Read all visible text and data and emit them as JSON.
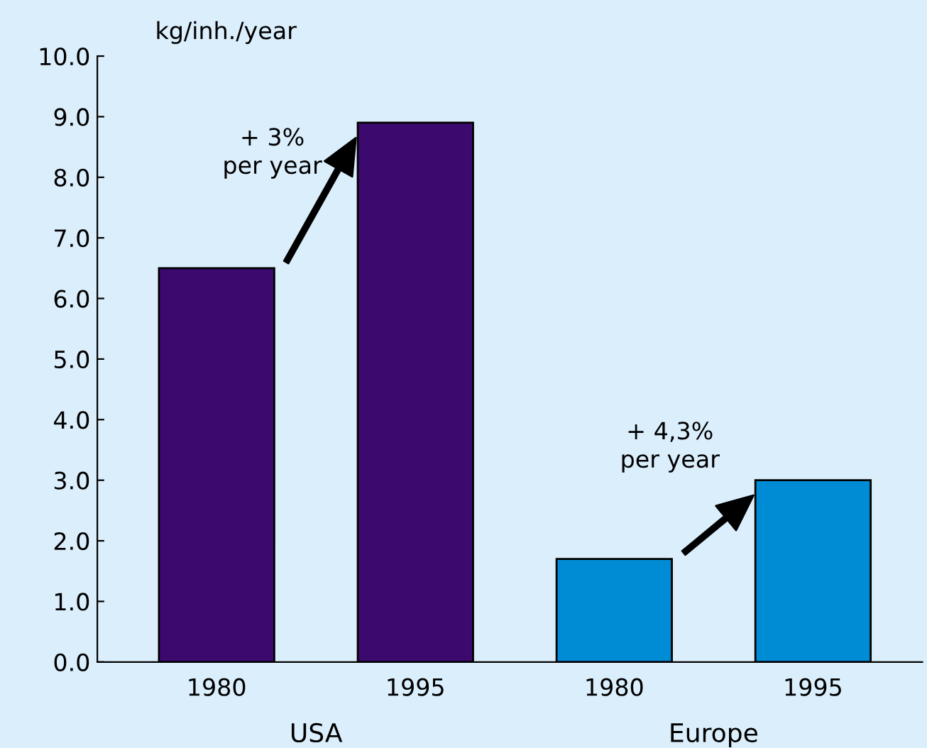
{
  "chart_data": {
    "type": "bar",
    "ylabel": "kg/inh./year",
    "categories": [
      "1980",
      "1995",
      "1980",
      "1995"
    ],
    "values": [
      6.5,
      8.9,
      1.7,
      3.0
    ],
    "colors": [
      "#3c0a6e",
      "#3c0a6e",
      "#008cd4",
      "#008cd4"
    ],
    "ylim": [
      0,
      10
    ],
    "yticks": [
      {
        "value": 0,
        "label": "0.0"
      },
      {
        "value": 1,
        "label": "1.0"
      },
      {
        "value": 2,
        "label": "2.0"
      },
      {
        "value": 3,
        "label": "3.0"
      },
      {
        "value": 4,
        "label": "4.0"
      },
      {
        "value": 5,
        "label": "5.0"
      },
      {
        "value": 6,
        "label": "6.0"
      },
      {
        "value": 7,
        "label": "7.0"
      },
      {
        "value": 8,
        "label": "8.0"
      },
      {
        "value": 9,
        "label": "9.0"
      },
      {
        "value": 10,
        "label": "10.0"
      }
    ],
    "grid": false,
    "legend": false,
    "annotations": [
      "+ 3%\nper year",
      "+ 4,3%\nper year",
      "USA",
      "Europe"
    ]
  }
}
